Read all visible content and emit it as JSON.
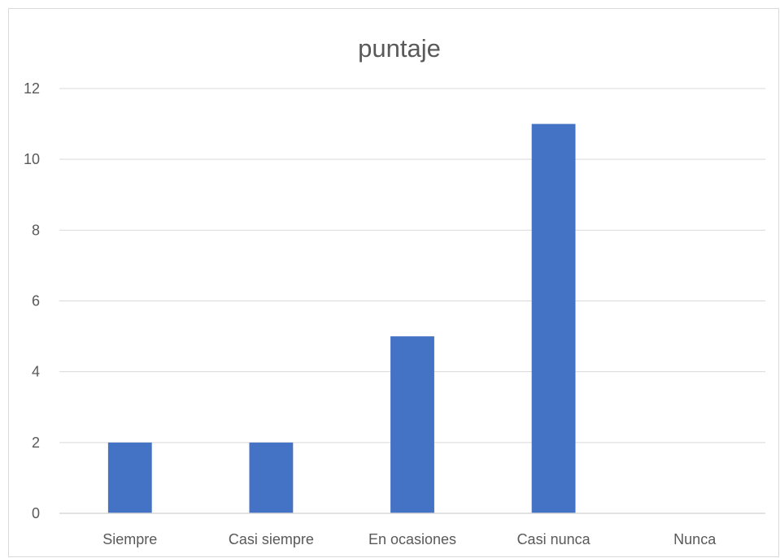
{
  "chart_data": {
    "type": "bar",
    "title": "puntaje",
    "categories": [
      "Siempre",
      "Casi siempre",
      "En ocasiones",
      "Casi nunca",
      "Nunca"
    ],
    "series": [
      {
        "values": [
          2,
          2,
          5,
          11,
          0
        ],
        "color": "#4472c4"
      }
    ],
    "xlabel": "",
    "ylabel": "",
    "ylim": [
      0,
      12
    ],
    "yticks": [
      0,
      2,
      4,
      6,
      8,
      10,
      12
    ],
    "grid": true,
    "legend": "none"
  }
}
